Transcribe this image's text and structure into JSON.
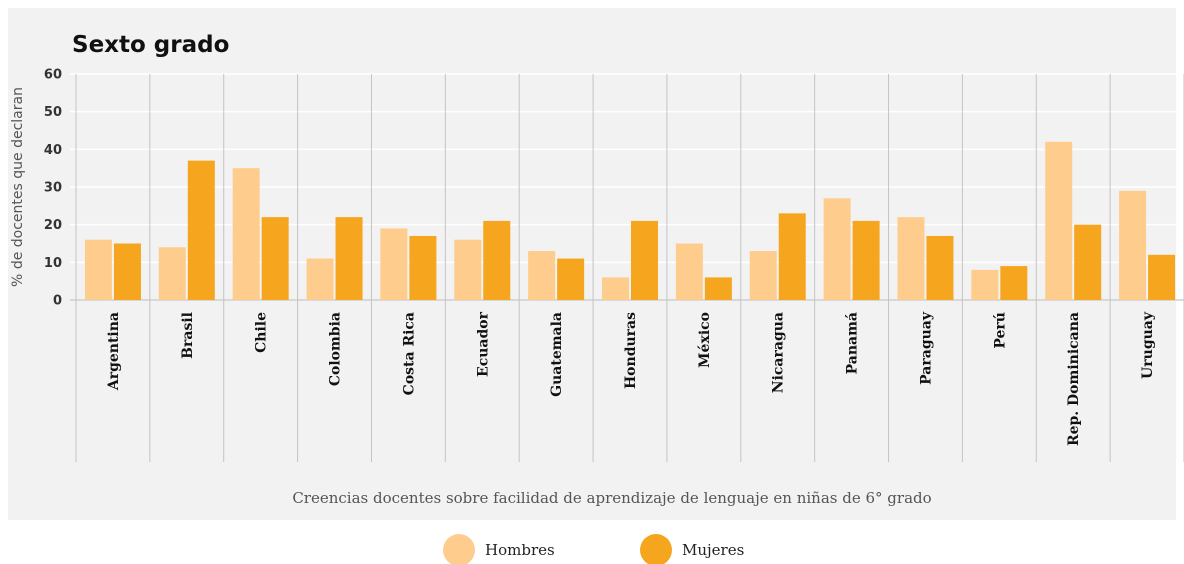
{
  "chart_data": {
    "type": "bar",
    "title": "Sexto grado",
    "ylabel": "% de docentes que declaran",
    "xlabel": "Creencias docentes sobre facilidad de aprendizaje de lenguaje en niñas de 6° grado",
    "ylim": [
      0,
      60
    ],
    "yticks": [
      0,
      10,
      20,
      30,
      40,
      50,
      60
    ],
    "grid": true,
    "legend_position": "bottom-center",
    "categories": [
      "Argentina",
      "Brasil",
      "Chile",
      "Colombia",
      "Costa Rica",
      "Ecuador",
      "Guatemala",
      "Honduras",
      "México",
      "Nicaragua",
      "Panamá",
      "Paraguay",
      "Perú",
      "Rep. Dominicana",
      "Uruguay"
    ],
    "series": [
      {
        "name": "Hombres",
        "color": "#fecd8e",
        "values": [
          16,
          14,
          35,
          11,
          19,
          16,
          13,
          6,
          15,
          13,
          27,
          22,
          8,
          42,
          29
        ]
      },
      {
        "name": "Mujeres",
        "color": "#f6a51e",
        "values": [
          15,
          37,
          22,
          22,
          17,
          21,
          11,
          21,
          6,
          23,
          21,
          17,
          9,
          20,
          12
        ]
      }
    ]
  },
  "colors": {
    "panel_background": "#f2f2f2",
    "gridline": "#ffffff",
    "separator": "#c4c4c4"
  }
}
